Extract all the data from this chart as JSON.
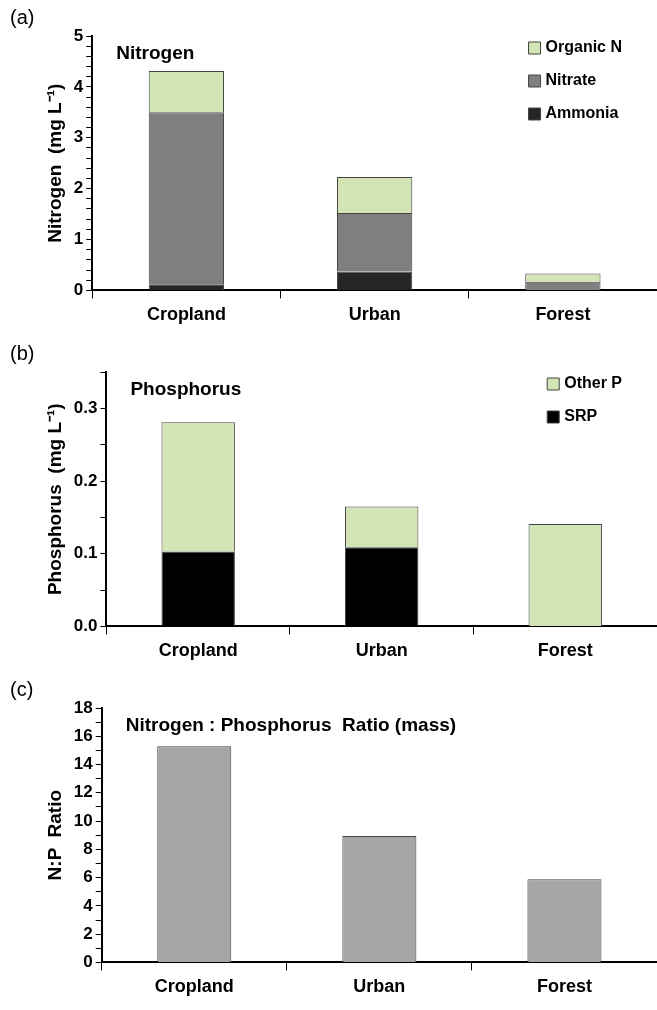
{
  "chart_data": [
    {
      "type": "bar",
      "title": "Nitrogen",
      "ylabel": "Nitrogen  (mg L⁻¹)",
      "categories": [
        "Cropland",
        "Urban",
        "Forest"
      ],
      "stacked": true,
      "legend": "top right",
      "grid": false,
      "annotations": [
        "(a)"
      ],
      "series": [
        {
          "name": "Ammonia",
          "color": "#262626",
          "values": [
            0.12,
            0.37,
            0
          ]
        },
        {
          "name": "Nitrate",
          "color": "#7f7f7f",
          "values": [
            3.38,
            1.15,
            0.17
          ]
        },
        {
          "name": "Organic N",
          "color": "#d3e4b5",
          "values": [
            0.81,
            0.71,
            0.16
          ]
        }
      ],
      "ylim": [
        0,
        5
      ],
      "yticks": [
        0,
        {
          "value": 0.2,
          "label": null
        },
        {
          "value": 0.4,
          "label": null
        },
        {
          "value": 0.6,
          "label": null
        },
        {
          "value": 0.8,
          "label": null
        },
        1,
        {
          "value": 1.2,
          "label": null
        },
        {
          "value": 1.4,
          "label": null
        },
        {
          "value": 1.6,
          "label": null
        },
        {
          "value": 1.8,
          "label": null
        },
        2,
        {
          "value": 2.2,
          "label": null
        },
        {
          "value": 2.4,
          "label": null
        },
        {
          "value": 2.6,
          "label": null
        },
        {
          "value": 2.8,
          "label": null
        },
        3,
        {
          "value": 3.2,
          "label": null
        },
        {
          "value": 3.4,
          "label": null
        },
        {
          "value": 3.6,
          "label": null
        },
        {
          "value": 3.8,
          "label": null
        },
        4,
        {
          "value": 4.2,
          "label": null
        },
        {
          "value": 4.4,
          "label": null
        },
        {
          "value": 4.6,
          "label": null
        },
        {
          "value": 4.8,
          "label": null
        },
        5
      ]
    },
    {
      "type": "bar",
      "title": "Phosphorus",
      "ylabel": "Phosphorus  (mg L⁻¹)",
      "categories": [
        "Cropland",
        "Urban",
        "Forest"
      ],
      "stacked": true,
      "legend": "top right",
      "grid": false,
      "annotations": [
        "(b)"
      ],
      "series": [
        {
          "name": "SRP",
          "color": "#000000",
          "values": [
            0.103,
            0.109,
            0
          ]
        },
        {
          "name": "Other P",
          "color": "#d3e4b5",
          "values": [
            0.178,
            0.056,
            0.141
          ]
        }
      ],
      "ylim": [
        0,
        0.35
      ],
      "yticks": [
        {
          "value": 0,
          "label": "0.0"
        },
        {
          "value": 0.05,
          "label": null
        },
        0.1,
        {
          "value": 0.15,
          "label": null
        },
        0.2,
        {
          "value": 0.25,
          "label": null
        },
        0.3,
        {
          "value": 0.35,
          "label": null
        }
      ]
    },
    {
      "type": "bar",
      "title": "Nitrogen : Phosphorus  Ratio (mass)",
      "ylabel": "N:P  Ratio",
      "categories": [
        "Cropland",
        "Urban",
        "Forest"
      ],
      "grid": false,
      "annotations": [
        "(c)"
      ],
      "values": [
        15.3,
        8.94,
        5.88
      ],
      "color": "#a6a6a6",
      "ylim": [
        0,
        18
      ],
      "yticks": [
        0,
        {
          "value": 1,
          "label": null
        },
        2,
        {
          "value": 3,
          "label": null
        },
        4,
        {
          "value": 5,
          "label": null
        },
        6,
        {
          "value": 7,
          "label": null
        },
        8,
        {
          "value": 9,
          "label": null
        },
        10,
        {
          "value": 11,
          "label": null
        },
        12,
        {
          "value": 13,
          "label": null
        },
        14,
        {
          "value": 15,
          "label": null
        },
        16,
        {
          "value": 17,
          "label": null
        },
        18
      ]
    }
  ]
}
